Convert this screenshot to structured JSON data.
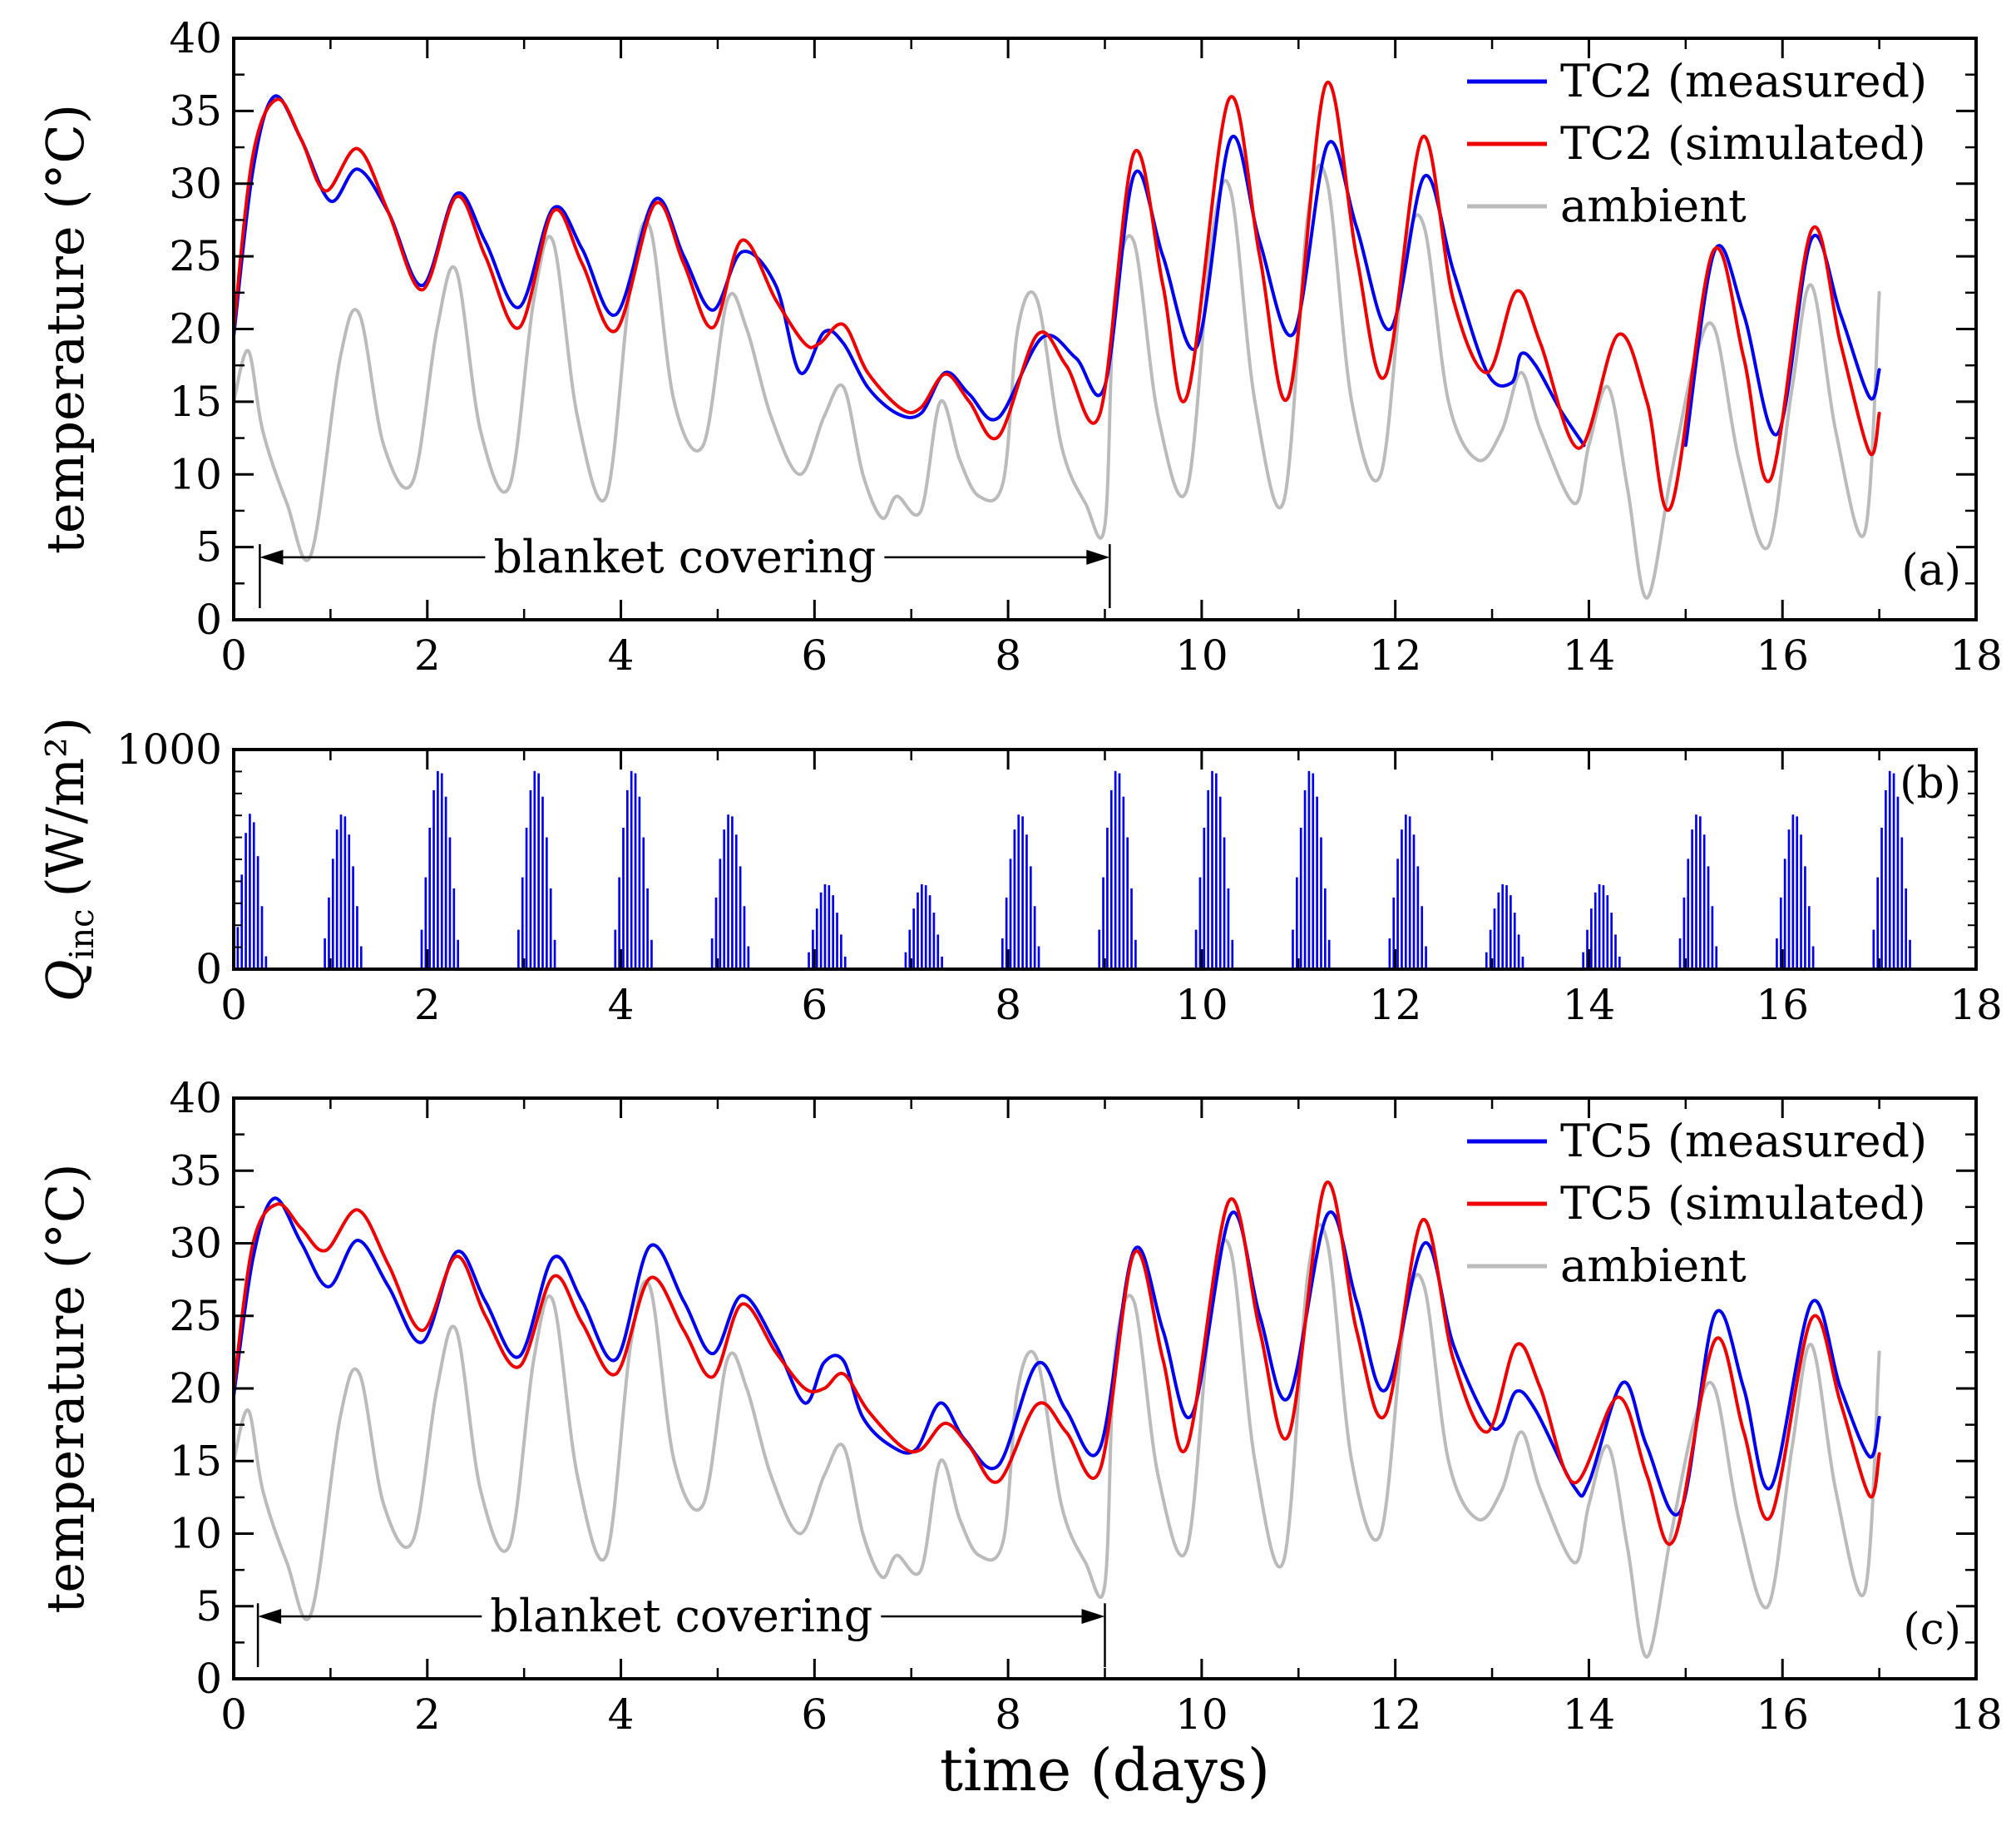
{
  "chart_data": [
    {
      "id": "a",
      "type": "line",
      "panel_label": "(a)",
      "ylabel": "temperature (°C)",
      "xlim": [
        0,
        18
      ],
      "ylim": [
        0,
        40
      ],
      "xticks": [
        "0",
        "2",
        "4",
        "6",
        "8",
        "10",
        "12",
        "14",
        "16",
        "18"
      ],
      "yticks": [
        "0",
        "5",
        "10",
        "15",
        "20",
        "25",
        "30",
        "35",
        "40"
      ],
      "legend_position": "top-right",
      "annotation": {
        "text": "blanket covering",
        "x_start": 0.27,
        "x_end": 9.05,
        "y": 4.3
      },
      "series": [
        {
          "name": "TC2 (measured)",
          "color": "#0000ee",
          "width": 4,
          "x": [
            0,
            0.2,
            0.42,
            0.7,
            1.0,
            1.28,
            1.6,
            1.95,
            2.3,
            2.6,
            2.95,
            3.3,
            3.6,
            3.95,
            4.35,
            4.65,
            4.95,
            5.25,
            5.6,
            5.85,
            6.1,
            6.3,
            6.55,
            6.85,
            7.1,
            7.35,
            7.6,
            7.9,
            8.35,
            8.7,
            9.0,
            9.3,
            9.6,
            9.95,
            10.3,
            10.6,
            10.95,
            11.3,
            11.6,
            11.95,
            12.3,
            12.6,
            12.95,
            13.2,
            13.3,
            13.45,
            13.7,
            13.95
          ],
          "y": [
            19.5,
            31,
            36,
            33,
            28.8,
            31,
            28,
            23,
            29.3,
            26,
            21.5,
            28.3,
            25.5,
            21,
            28.9,
            25,
            21.3,
            25.3,
            23,
            17,
            19.8,
            19,
            16,
            14.2,
            14.2,
            17,
            15.5,
            13.9,
            19.4,
            18,
            16.1,
            30.6,
            25,
            18.8,
            33.1,
            26,
            19.7,
            32.7,
            27,
            20,
            30.5,
            24,
            17,
            16.3,
            18.3,
            17.5,
            14.5,
            12
          ],
          "x2": [
            15.0,
            15.3,
            15.6,
            15.95,
            16.3,
            16.6,
            16.9,
            17.0
          ],
          "y2": [
            12,
            25.4,
            21,
            12.8,
            26.2,
            21,
            15.3,
            17.2
          ]
        },
        {
          "name": "TC2 (simulated)",
          "color": "#ee0000",
          "width": 4,
          "x": [
            0,
            0.2,
            0.45,
            0.7,
            0.95,
            1.28,
            1.6,
            1.95,
            2.3,
            2.6,
            2.95,
            3.3,
            3.6,
            3.95,
            4.35,
            4.65,
            4.95,
            5.25,
            5.6,
            5.9,
            6.05,
            6.3,
            6.55,
            6.9,
            7.1,
            7.35,
            7.6,
            7.9,
            8.3,
            8.6,
            8.95,
            9.3,
            9.6,
            9.85,
            10.28,
            10.6,
            10.9,
            11.28,
            11.6,
            11.9,
            12.28,
            12.6,
            12.95,
            13.25,
            13.5,
            13.9,
            14.3,
            14.6,
            14.85,
            15.28,
            15.6,
            15.88,
            16.3,
            16.6,
            16.9,
            17.0
          ],
          "y": [
            20,
            32,
            35.8,
            33,
            29.5,
            32.4,
            28,
            22.7,
            29.1,
            25,
            20.1,
            28.1,
            24.5,
            19.9,
            28.6,
            24.5,
            20.1,
            26.1,
            22,
            19,
            19,
            20.3,
            17,
            14.5,
            14.6,
            16.9,
            15,
            12.6,
            19.6,
            17.5,
            14.2,
            32.1,
            23,
            15.4,
            35.8,
            25,
            15.4,
            36.8,
            25,
            16.8,
            33.2,
            22,
            17,
            22.6,
            19,
            11.8,
            19.6,
            15,
            7.8,
            25.3,
            18,
            9.7,
            26.8,
            19,
            11.5,
            14.2
          ]
        },
        {
          "name": "ambient",
          "color": "#bbbbbb",
          "width": 4,
          "x": [
            0,
            0.15,
            0.3,
            0.55,
            0.8,
            1.1,
            1.3,
            1.55,
            1.85,
            2.1,
            2.3,
            2.55,
            2.85,
            3.1,
            3.3,
            3.55,
            3.85,
            4.1,
            4.3,
            4.55,
            4.85,
            5.1,
            5.3,
            5.55,
            5.85,
            6.1,
            6.3,
            6.5,
            6.7,
            6.85,
            7.1,
            7.3,
            7.5,
            7.7,
            7.95,
            8.1,
            8.3,
            8.55,
            8.8,
            9.0,
            9.1,
            9.3,
            9.55,
            9.85,
            10.1,
            10.3,
            10.55,
            10.85,
            11.1,
            11.3,
            11.55,
            11.85,
            12.1,
            12.3,
            12.55,
            12.85,
            13.1,
            13.3,
            13.5,
            13.85,
            14.0,
            14.2,
            14.4,
            14.6,
            14.85,
            15.1,
            15.3,
            15.55,
            15.85,
            16.1,
            16.3,
            16.55,
            16.85,
            17.0
          ],
          "y": [
            15,
            18.5,
            13,
            8,
            4.5,
            18,
            21,
            12,
            9.5,
            20,
            24,
            13,
            9.2,
            22,
            26,
            14,
            8.5,
            23,
            27,
            15,
            12,
            22,
            20,
            14,
            10,
            14,
            16,
            10,
            7,
            8.5,
            7.5,
            15,
            11,
            8.5,
            9.5,
            20,
            22,
            12,
            8,
            6.5,
            22,
            26,
            14,
            9,
            26,
            29.5,
            15,
            8.2,
            28,
            30,
            15,
            10,
            25,
            27,
            15,
            11,
            13,
            17,
            13,
            8,
            12,
            16,
            9,
            1.5,
            10,
            18,
            20,
            11,
            5,
            16,
            23,
            13,
            6,
            22.5
          ]
        }
      ]
    },
    {
      "id": "b",
      "type": "bar",
      "panel_label": "(b)",
      "ylabel": "Q_inc (W/m²)",
      "ylabel_symbol": "Q",
      "ylabel_subscript": "inc",
      "ylabel_unit": "(W/m²)",
      "xlim": [
        0,
        18
      ],
      "ylim": [
        0,
        1000
      ],
      "xticks": [
        "0",
        "2",
        "4",
        "6",
        "8",
        "10",
        "12",
        "14",
        "16",
        "18"
      ],
      "yticks": [
        "0",
        "1000"
      ],
      "bar_color": "#0000ee",
      "bar_spacing_days": 0.0417,
      "day_peaks": [
        {
          "day": 0,
          "peak": 710,
          "start": 0.0,
          "end": 0.35
        },
        {
          "day": 1,
          "peak": 710,
          "start": 0.9,
          "end": 1.35
        },
        {
          "day": 2,
          "peak": 910,
          "start": 1.9,
          "end": 2.35
        },
        {
          "day": 3,
          "peak": 910,
          "start": 2.9,
          "end": 3.35
        },
        {
          "day": 4,
          "peak": 910,
          "start": 3.9,
          "end": 4.35
        },
        {
          "day": 5,
          "peak": 710,
          "start": 4.9,
          "end": 5.35
        },
        {
          "day": 6,
          "peak": 390,
          "start": 5.9,
          "end": 6.35
        },
        {
          "day": 7,
          "peak": 390,
          "start": 6.9,
          "end": 7.35
        },
        {
          "day": 8,
          "peak": 710,
          "start": 7.9,
          "end": 8.35
        },
        {
          "day": 9,
          "peak": 910,
          "start": 8.9,
          "end": 9.35
        },
        {
          "day": 10,
          "peak": 910,
          "start": 9.9,
          "end": 10.35
        },
        {
          "day": 11,
          "peak": 910,
          "start": 10.9,
          "end": 11.35
        },
        {
          "day": 12,
          "peak": 710,
          "start": 11.9,
          "end": 12.35
        },
        {
          "day": 13,
          "peak": 390,
          "start": 12.9,
          "end": 13.35
        },
        {
          "day": 14,
          "peak": 390,
          "start": 13.9,
          "end": 14.35
        },
        {
          "day": 15,
          "peak": 710,
          "start": 14.9,
          "end": 15.35
        },
        {
          "day": 16,
          "peak": 710,
          "start": 15.9,
          "end": 16.35
        },
        {
          "day": 17,
          "peak": 910,
          "start": 16.9,
          "end": 17.35
        }
      ]
    },
    {
      "id": "c",
      "type": "line",
      "panel_label": "(c)",
      "ylabel": "temperature (°C)",
      "xlabel": "time (days)",
      "xlim": [
        0,
        18
      ],
      "ylim": [
        0,
        40
      ],
      "xticks": [
        "0",
        "2",
        "4",
        "6",
        "8",
        "10",
        "12",
        "14",
        "16",
        "18"
      ],
      "yticks": [
        "0",
        "5",
        "10",
        "15",
        "20",
        "25",
        "30",
        "35",
        "40"
      ],
      "legend_position": "top-right",
      "annotation": {
        "text": "blanket covering",
        "x_start": 0.25,
        "x_end": 9.0,
        "y": 4.3
      },
      "series": [
        {
          "name": "TC5 (measured)",
          "color": "#0000ee",
          "width": 4,
          "x": [
            0,
            0.2,
            0.42,
            0.7,
            0.98,
            1.28,
            1.6,
            1.95,
            2.3,
            2.6,
            2.95,
            3.3,
            3.6,
            3.95,
            4.3,
            4.65,
            4.95,
            5.25,
            5.6,
            5.9,
            6.1,
            6.3,
            6.5,
            6.8,
            7.05,
            7.3,
            7.55,
            7.9,
            8.3,
            8.6,
            8.95,
            9.3,
            9.6,
            9.9,
            10.3,
            10.6,
            10.9,
            11.3,
            11.6,
            11.9,
            12.3,
            12.6,
            12.95,
            13.1,
            13.25,
            13.45,
            13.85,
            14.0,
            14.35,
            14.6,
            14.95,
            15.3,
            15.6,
            15.88,
            16.3,
            16.6,
            16.9,
            17.0
          ],
          "y": [
            19.5,
            29,
            33.1,
            30,
            27,
            30.2,
            27,
            23.2,
            29.4,
            26,
            22.2,
            29,
            26,
            22,
            29.8,
            26,
            22.4,
            26.4,
            23,
            19,
            21.8,
            21.9,
            18,
            16,
            15.8,
            19,
            16.5,
            14.7,
            21.7,
            18.5,
            15.9,
            29.5,
            24,
            18.2,
            32,
            25,
            19.4,
            32,
            26,
            19.9,
            30,
            23,
            17.8,
            17.5,
            19.8,
            18.5,
            13.2,
            13.5,
            20.4,
            16,
            11.6,
            25.1,
            20,
            13.2,
            25.9,
            20,
            15.3,
            18
          ]
        },
        {
          "name": "TC5 (simulated)",
          "color": "#ee0000",
          "width": 4,
          "x": [
            0,
            0.2,
            0.45,
            0.7,
            0.95,
            1.28,
            1.6,
            1.95,
            2.3,
            2.6,
            2.95,
            3.3,
            3.6,
            3.95,
            4.3,
            4.65,
            4.95,
            5.25,
            5.6,
            5.9,
            6.1,
            6.3,
            6.55,
            6.9,
            7.1,
            7.35,
            7.6,
            7.9,
            8.3,
            8.6,
            8.95,
            9.3,
            9.6,
            9.85,
            10.28,
            10.6,
            10.9,
            11.28,
            11.6,
            11.9,
            12.28,
            12.6,
            12.95,
            13.25,
            13.5,
            13.85,
            14.3,
            14.6,
            14.88,
            15.3,
            15.6,
            15.88,
            16.3,
            16.6,
            16.9,
            17.0
          ],
          "y": [
            20,
            30,
            32.7,
            31,
            29.5,
            32.3,
            28.5,
            24,
            29.1,
            25,
            21.5,
            27.7,
            24.5,
            21,
            27.6,
            24,
            20.8,
            25.8,
            22.5,
            20,
            20,
            21,
            18.5,
            16,
            15.8,
            17.6,
            16,
            13.6,
            18.9,
            17,
            14.4,
            29.3,
            22,
            16,
            32.9,
            24,
            16.8,
            34.1,
            24,
            18.2,
            31.6,
            22,
            17,
            23,
            20,
            13.5,
            19.4,
            14,
            9.6,
            23.3,
            17,
            11.2,
            24.8,
            19,
            12.6,
            15.5
          ]
        },
        {
          "name": "ambient",
          "color": "#bbbbbb",
          "width": 4,
          "x": [
            0,
            0.15,
            0.3,
            0.55,
            0.8,
            1.1,
            1.3,
            1.55,
            1.85,
            2.1,
            2.3,
            2.55,
            2.85,
            3.1,
            3.3,
            3.55,
            3.85,
            4.1,
            4.3,
            4.55,
            4.85,
            5.1,
            5.3,
            5.55,
            5.85,
            6.1,
            6.3,
            6.5,
            6.7,
            6.85,
            7.1,
            7.3,
            7.5,
            7.7,
            7.95,
            8.1,
            8.3,
            8.55,
            8.8,
            9.0,
            9.1,
            9.3,
            9.55,
            9.85,
            10.1,
            10.3,
            10.55,
            10.85,
            11.1,
            11.3,
            11.55,
            11.85,
            12.1,
            12.3,
            12.55,
            12.85,
            13.1,
            13.3,
            13.5,
            13.85,
            14.0,
            14.2,
            14.4,
            14.6,
            14.85,
            15.1,
            15.3,
            15.55,
            15.85,
            16.1,
            16.3,
            16.55,
            16.85,
            17.0
          ],
          "y": [
            15,
            18.5,
            13,
            8,
            4.5,
            18,
            21,
            12,
            9.5,
            20,
            24,
            13,
            9.2,
            22,
            26,
            14,
            8.5,
            23,
            27,
            15,
            12,
            22,
            20,
            14,
            10,
            14,
            16,
            10,
            7,
            8.5,
            7.5,
            15,
            11,
            8.5,
            9.5,
            20,
            22,
            12,
            8,
            6.5,
            22,
            26,
            14,
            9,
            26,
            29.5,
            15,
            8.2,
            28,
            30,
            15,
            10,
            25,
            27,
            15,
            11,
            13,
            17,
            13,
            8,
            12,
            16,
            9,
            1.5,
            10,
            18,
            20,
            11,
            5,
            16,
            23,
            13,
            6,
            22.5
          ]
        }
      ]
    }
  ]
}
